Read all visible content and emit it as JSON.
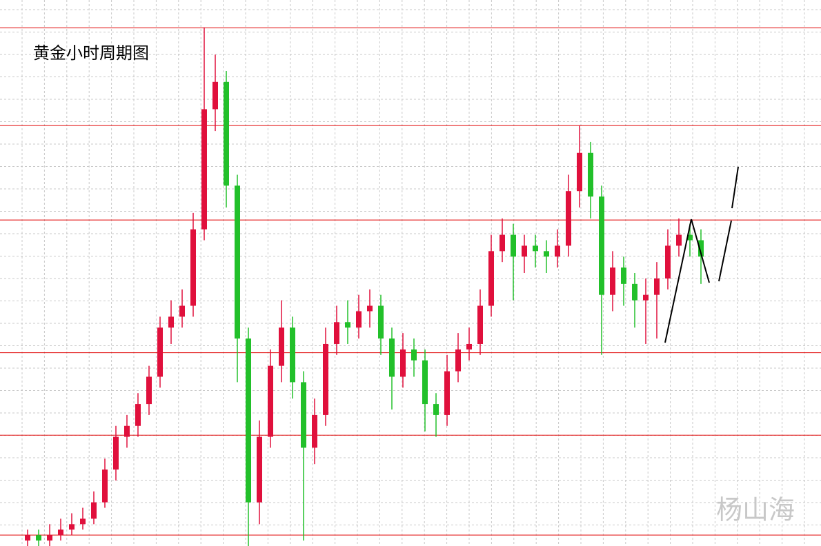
{
  "chart_data": {
    "type": "candlestick",
    "title": "黄金小时周期图",
    "watermark": "杨山海",
    "up_color": "#e0103c",
    "down_color": "#22c02a",
    "level_color": "#e00000",
    "ylim": [
      0,
      100
    ],
    "levels": [
      94.9,
      77.0,
      59.7,
      35.4,
      20.3,
      2.0
    ],
    "ohlc": [
      [
        1,
        3,
        0,
        2
      ],
      [
        2,
        3,
        0,
        1
      ],
      [
        1,
        4,
        0,
        2
      ],
      [
        2,
        5,
        1,
        3
      ],
      [
        3,
        6,
        2,
        4
      ],
      [
        4,
        7,
        3,
        5
      ],
      [
        5,
        10,
        4,
        8
      ],
      [
        8,
        16,
        7,
        14
      ],
      [
        14,
        22,
        12,
        20
      ],
      [
        20,
        24,
        18,
        22
      ],
      [
        22,
        28,
        20,
        26
      ],
      [
        26,
        33,
        24,
        31
      ],
      [
        31,
        42,
        29,
        40
      ],
      [
        40,
        45,
        37,
        42
      ],
      [
        42,
        47,
        40,
        44
      ],
      [
        44,
        61,
        42,
        58
      ],
      [
        58,
        95,
        56,
        80
      ],
      [
        80,
        90,
        76,
        85
      ],
      [
        85,
        87,
        62,
        66
      ],
      [
        66,
        68,
        30,
        38
      ],
      [
        38,
        40,
        0,
        8
      ],
      [
        8,
        23,
        4,
        20
      ],
      [
        20,
        36,
        18,
        33
      ],
      [
        33,
        45,
        30,
        40
      ],
      [
        40,
        42,
        27,
        30
      ],
      [
        30,
        32,
        1,
        18
      ],
      [
        18,
        27,
        15,
        24
      ],
      [
        24,
        40,
        22,
        37
      ],
      [
        37,
        44,
        35,
        41
      ],
      [
        41,
        45,
        37,
        40
      ],
      [
        40,
        46,
        38,
        43
      ],
      [
        43,
        47,
        40,
        44
      ],
      [
        44,
        46,
        35,
        38
      ],
      [
        38,
        40,
        25,
        31
      ],
      [
        31,
        39,
        29,
        36
      ],
      [
        36,
        38,
        31,
        34
      ],
      [
        34,
        36,
        21,
        26
      ],
      [
        26,
        28,
        20,
        24
      ],
      [
        24,
        35,
        22,
        32
      ],
      [
        32,
        39,
        30,
        36
      ],
      [
        36,
        40,
        34,
        37
      ],
      [
        37,
        47,
        35,
        44
      ],
      [
        44,
        57,
        42,
        54
      ],
      [
        54,
        60,
        52,
        57
      ],
      [
        57,
        59,
        45,
        53
      ],
      [
        53,
        57,
        50,
        55
      ],
      [
        55,
        57,
        51,
        54
      ],
      [
        54,
        56,
        50,
        53
      ],
      [
        53,
        58,
        51,
        55
      ],
      [
        55,
        68,
        53,
        65
      ],
      [
        65,
        77,
        62,
        72
      ],
      [
        72,
        74,
        60,
        64
      ],
      [
        64,
        66,
        35,
        46
      ],
      [
        46,
        54,
        43,
        51
      ],
      [
        51,
        53,
        44,
        48
      ],
      [
        48,
        50,
        40,
        45
      ],
      [
        45,
        49,
        37,
        46
      ],
      [
        46,
        52,
        38,
        49
      ],
      [
        49,
        58,
        47,
        55
      ],
      [
        55,
        60,
        53,
        57
      ],
      [
        57,
        59,
        53,
        56
      ],
      [
        56,
        58,
        48,
        53
      ]
    ]
  }
}
